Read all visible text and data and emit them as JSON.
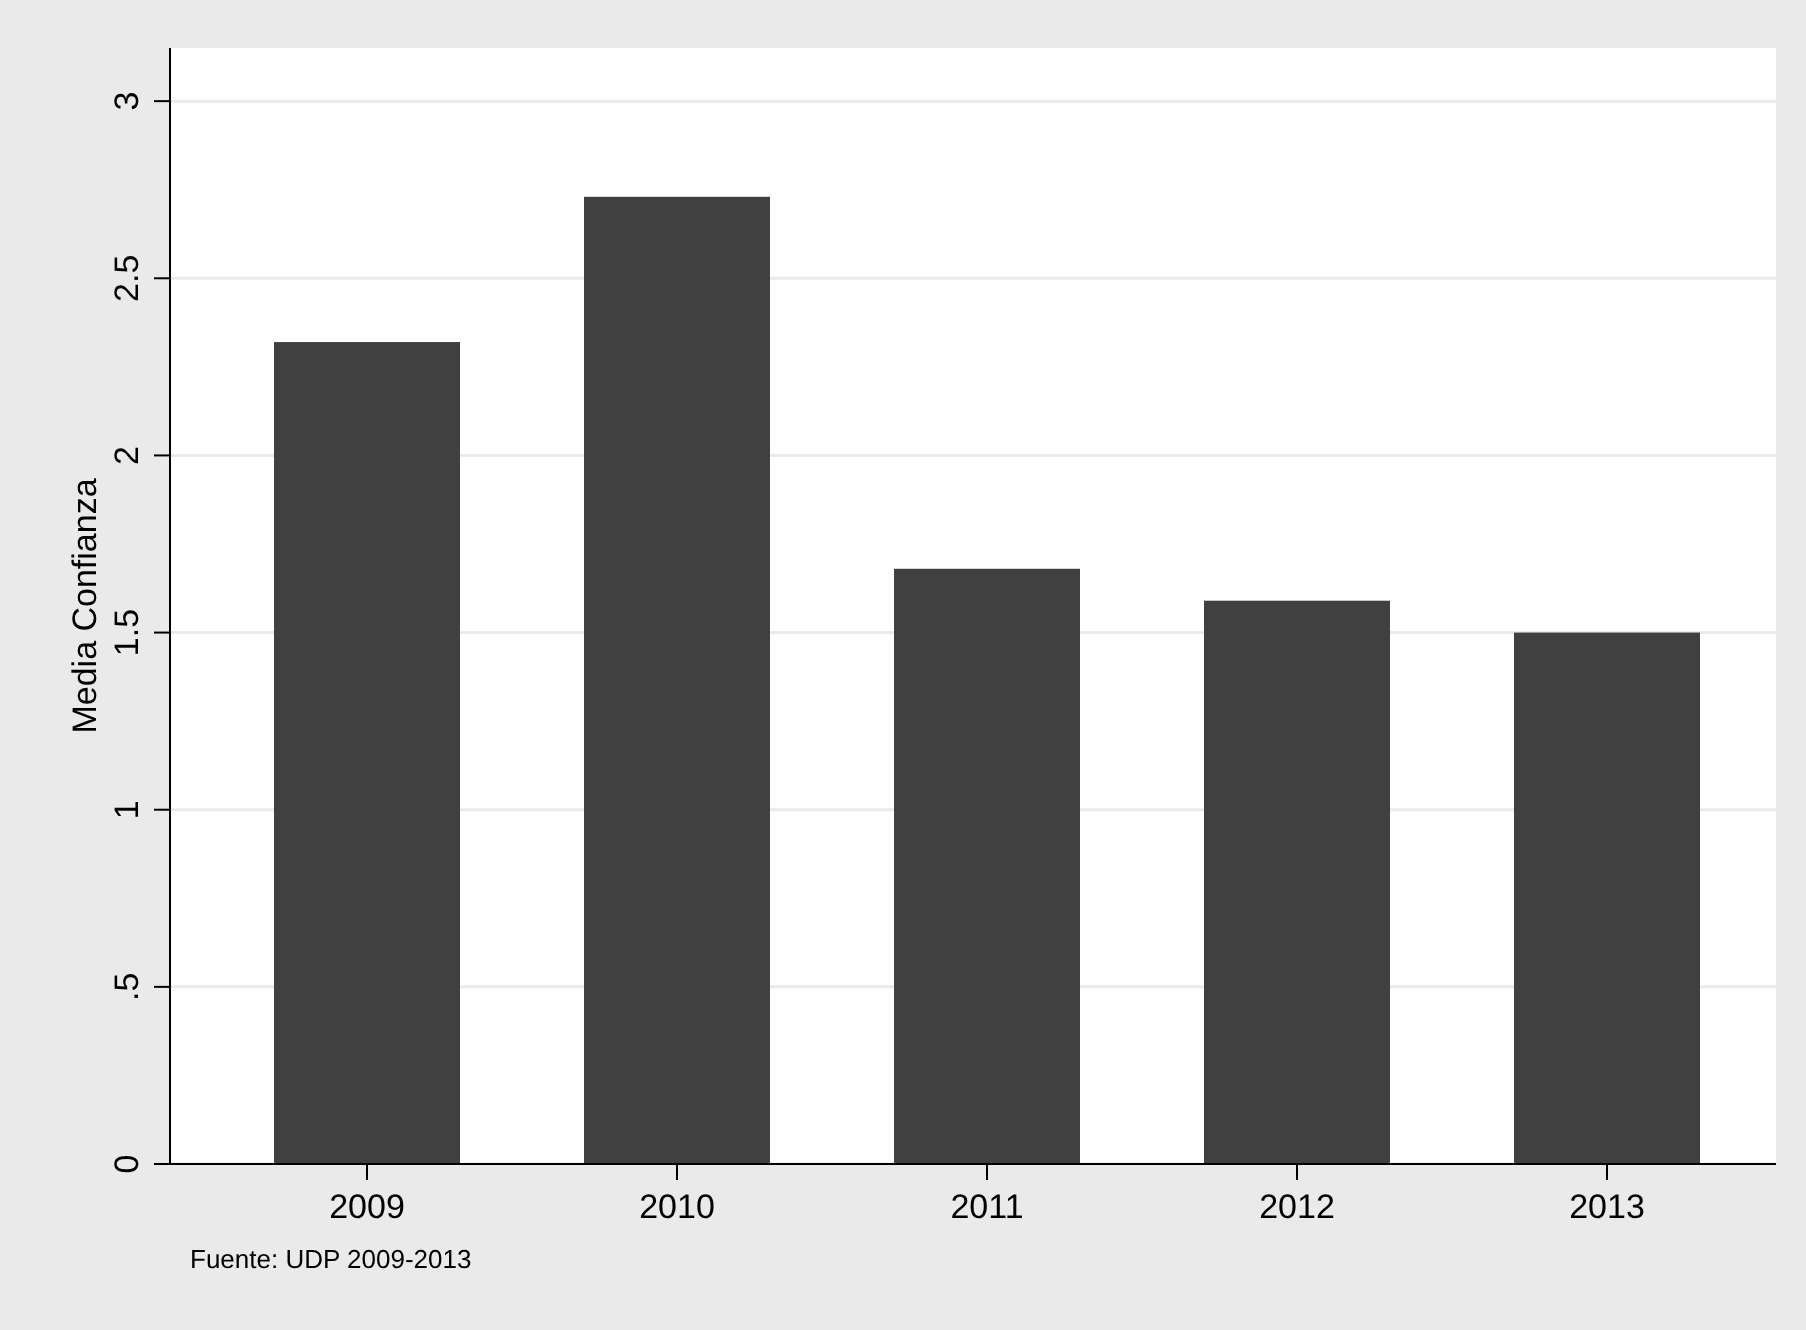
{
  "chart_data": {
    "type": "bar",
    "ylabel": "Media Confianza",
    "categories": [
      "2009",
      "2010",
      "2011",
      "2012",
      "2013"
    ],
    "values": [
      2.32,
      2.73,
      1.68,
      1.59,
      1.5
    ],
    "color": "#404040",
    "ylim": [
      0,
      3.15
    ],
    "yticks": [
      0,
      {
        "value": 0.5,
        "label": ".5"
      },
      1,
      1.5,
      2,
      2.5,
      3
    ],
    "grid": "y",
    "annotations": [
      "Fuente: UDP 2009-2013"
    ]
  }
}
